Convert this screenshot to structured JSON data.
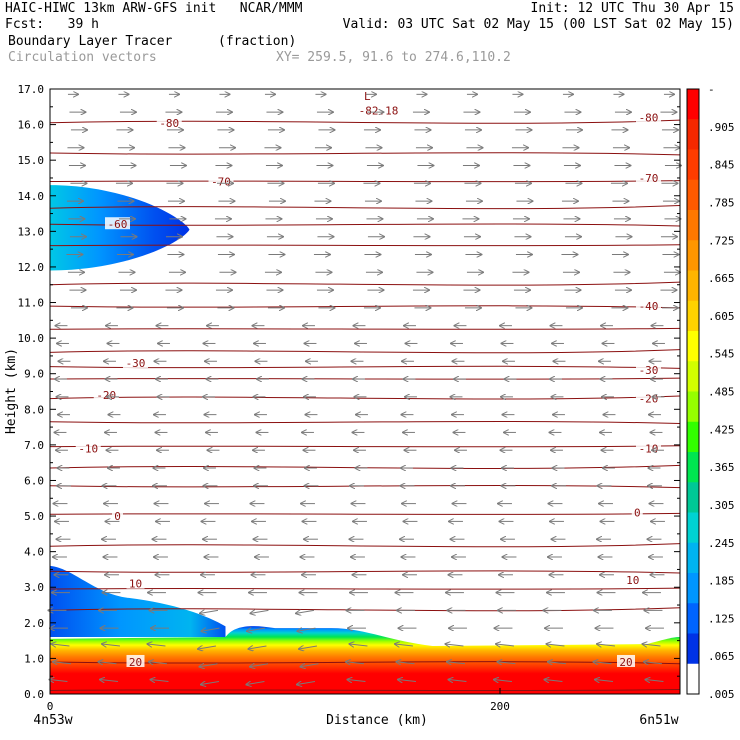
{
  "header": {
    "line1_left": "HAIC-HIWC 13km ARW-GFS init   NCAR/MMM",
    "line1_right": "Init: 12 UTC Thu 30 Apr 15",
    "line2_left": "Fcst:   39 h",
    "line2_right": "Valid: 03 UTC Sat 02 May 15 (00 LST Sat 02 May 15)",
    "field_name": "Boundary Layer Tracer",
    "field_units": "(fraction)",
    "vector_name": "Circulation vectors",
    "xy_info": "XY= 259.5, 91.6 to 274.6,110.2"
  },
  "chart_data": {
    "type": "heatmap",
    "xlabel": "Distance (km)",
    "ylabel": "Height (km)",
    "xlim": [
      0,
      280
    ],
    "ylim": [
      0,
      17
    ],
    "xticks": [
      "0",
      "200"
    ],
    "x_end_labels": [
      "4n53w",
      "6n51w"
    ],
    "yticks": [
      "0.0",
      "1.0",
      "2.0",
      "3.0",
      "4.0",
      "5.0",
      "6.0",
      "7.0",
      "8.0",
      "9.0",
      "10.0",
      "11.0",
      "12.0",
      "13.0",
      "14.0",
      "15.0",
      "16.0",
      "17.0"
    ],
    "colorbar": {
      "labels": [
        "-",
        ".905",
        ".845",
        ".785",
        ".725",
        ".665",
        ".605",
        ".545",
        ".485",
        ".425",
        ".365",
        ".305",
        ".245",
        ".185",
        ".125",
        ".065",
        ".005"
      ],
      "colors": [
        "#ff0000",
        "#f52800",
        "#ff3c00",
        "#ff5a00",
        "#ff7800",
        "#ff9600",
        "#ffb400",
        "#ffd200",
        "#ffff00",
        "#d2ff00",
        "#96ff00",
        "#32ff00",
        "#00e650",
        "#00c896",
        "#00d2d2",
        "#00b4f0",
        "#0096ff",
        "#0064ff",
        "#0032e6",
        "#ffffff"
      ]
    },
    "tracer_blobs": [
      {
        "name": "upper-layer",
        "x_range": [
          0,
          62
        ],
        "z_range": [
          11.9,
          14.3
        ],
        "max": 0.2
      },
      {
        "name": "mid-layer",
        "x_range": [
          0,
          78
        ],
        "z_range": [
          1.6,
          3.6
        ],
        "max": 0.2
      },
      {
        "name": "boundary-layer",
        "x_range": [
          0,
          280
        ],
        "z_range": [
          0,
          1.7
        ],
        "max": 0.96
      }
    ],
    "isotherm_labels": [
      {
        "text": "-82.18",
        "x": 146,
        "z": 16.4
      },
      {
        "text": "L",
        "x": 141,
        "z": 16.8
      },
      {
        "text": "-80",
        "x": 53,
        "z": 16.05
      },
      {
        "text": "-80",
        "x": 266,
        "z": 16.2
      },
      {
        "text": "-70",
        "x": 76,
        "z": 14.4
      },
      {
        "text": "-70",
        "x": 266,
        "z": 14.5
      },
      {
        "text": "-60",
        "x": 30,
        "z": 13.2
      },
      {
        "text": "-40",
        "x": 266,
        "z": 10.9
      },
      {
        "text": "-30",
        "x": 38,
        "z": 9.3
      },
      {
        "text": "-30",
        "x": 266,
        "z": 9.1
      },
      {
        "text": "-20",
        "x": 25,
        "z": 8.4
      },
      {
        "text": "-20",
        "x": 266,
        "z": 8.3
      },
      {
        "text": "-10",
        "x": 17,
        "z": 6.9
      },
      {
        "text": "-10",
        "x": 266,
        "z": 6.9
      },
      {
        "text": "0",
        "x": 30,
        "z": 5.0
      },
      {
        "text": "0",
        "x": 261,
        "z": 5.1
      },
      {
        "text": "10",
        "x": 38,
        "z": 3.1
      },
      {
        "text": "10",
        "x": 259,
        "z": 3.2
      },
      {
        "text": "20",
        "x": 38,
        "z": 0.9
      },
      {
        "text": "20",
        "x": 256,
        "z": 0.9
      }
    ],
    "isotherm_levels_z": [
      16.05,
      15.2,
      14.4,
      13.65,
      13.2,
      12.6,
      11.5,
      10.9,
      10.25,
      9.6,
      9.2,
      8.85,
      8.3,
      7.65,
      6.95,
      6.35,
      5.85,
      5.05,
      4.15,
      3.45,
      2.95,
      2.35,
      0.9,
      0.1
    ]
  }
}
